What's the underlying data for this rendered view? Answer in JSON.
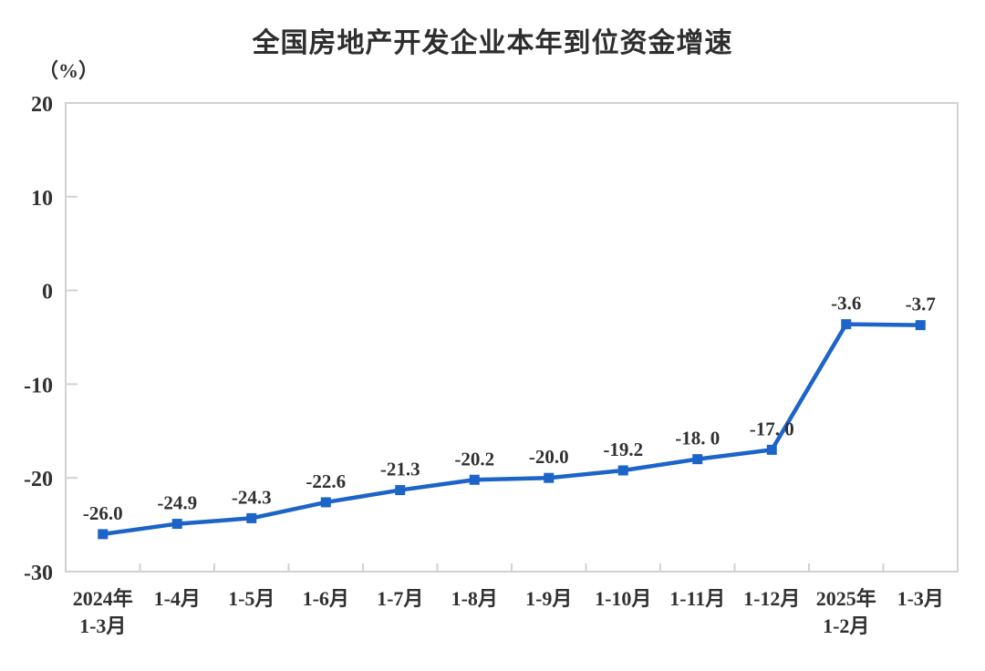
{
  "title": "全国房地产开发企业本年到位资金增速",
  "unit_label": "（%）",
  "chart_data": {
    "type": "line",
    "title": "全国房地产开发企业本年到位资金增速",
    "unit": "（%）",
    "categories": [
      "2024年\n1-3月",
      "1-4月",
      "1-5月",
      "1-6月",
      "1-7月",
      "1-8月",
      "1-9月",
      "1-10月",
      "1-11月",
      "1-12月",
      "2025年\n1-2月",
      "1-3月"
    ],
    "values": [
      -26.0,
      -24.9,
      -24.3,
      -22.6,
      -21.3,
      -20.2,
      -20.0,
      -19.2,
      -18.0,
      -17.0,
      -3.6,
      -3.7
    ],
    "labels": [
      "-26.0",
      "-24.9",
      "-24.3",
      "-22.6",
      "-21.3",
      "-20.2",
      "-20.0",
      "-19.2",
      "-18. 0",
      "-17. 0",
      "-3.6",
      "-3.7"
    ],
    "xlabel": "",
    "ylabel": "（%）",
    "ylim": [
      -30,
      20
    ],
    "yticks": [
      20,
      10,
      0,
      -10,
      -20,
      -30
    ],
    "grid": false,
    "legend": "none",
    "line_color": "#1c64c8",
    "marker": "square",
    "axis_color": "#d2d2d2",
    "text_color": "#303030"
  }
}
